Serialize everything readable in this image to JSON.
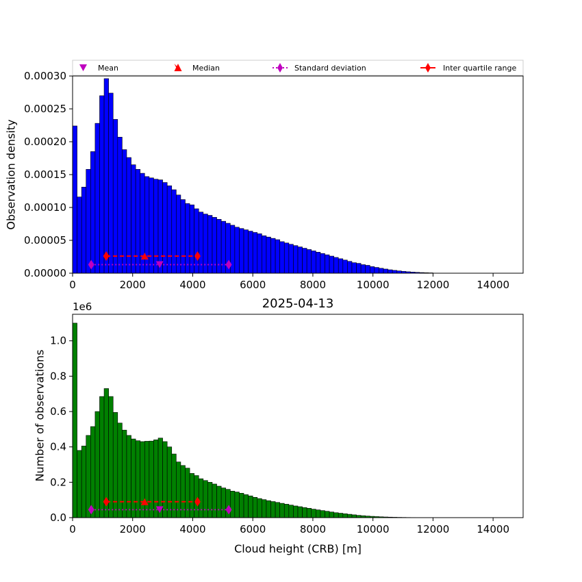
{
  "chart_data": [
    {
      "type": "bar",
      "title": "",
      "xlabel": "",
      "ylabel": "Observation density",
      "xlim": [
        0,
        15000
      ],
      "ylim": [
        0,
        0.0003
      ],
      "bin_width": 150,
      "bar_color": "#0000ff",
      "edge_color": "#000000",
      "xticks": [
        0,
        2000,
        4000,
        6000,
        8000,
        10000,
        12000,
        14000
      ],
      "xtick_labels": [
        "0",
        "2000",
        "4000",
        "6000",
        "8000",
        "10000",
        "12000",
        "14000"
      ],
      "yticks": [
        0,
        5e-05,
        0.0001,
        0.00015,
        0.0002,
        0.00025,
        0.0003
      ],
      "ytick_labels": [
        "0.00000",
        "0.00005",
        "0.00010",
        "0.00015",
        "0.00020",
        "0.00025",
        "0.00030"
      ],
      "bin_edges_start": 0,
      "values": [
        0.000224,
        0.000116,
        0.000131,
        0.000158,
        0.000185,
        0.000228,
        0.00027,
        0.000296,
        0.000274,
        0.000234,
        0.000207,
        0.000188,
        0.000176,
        0.000165,
        0.000158,
        0.000152,
        0.000147,
        0.000145,
        0.000143,
        0.000142,
        0.000138,
        0.000133,
        0.000127,
        0.000119,
        0.000112,
        0.000106,
        0.000104,
        9.8e-05,
        9.3e-05,
        9e-05,
        8.8e-05,
        8.5e-05,
        8.2e-05,
        7.9e-05,
        7.6e-05,
        7.3e-05,
        7e-05,
        6.8e-05,
        6.6e-05,
        6.4e-05,
        6.2e-05,
        6e-05,
        5.7e-05,
        5.5e-05,
        5.3e-05,
        5.1e-05,
        4.8e-05,
        4.6e-05,
        4.4e-05,
        4.2e-05,
        4e-05,
        3.8e-05,
        3.6e-05,
        3.4e-05,
        3.2e-05,
        3e-05,
        2.8e-05,
        2.6e-05,
        2.4e-05,
        2.2e-05,
        2e-05,
        1.8e-05,
        1.6e-05,
        1.5e-05,
        1.3e-05,
        1.2e-05,
        1e-05,
        8.8e-06,
        7.5e-06,
        6.3e-06,
        5.2e-06,
        4.3e-06,
        3.5e-06,
        2.8e-06,
        2.2e-06,
        1.7e-06,
        1.3e-06,
        1e-06,
        7.5e-07,
        5.5e-07
      ],
      "stats": {
        "mean": {
          "x": 2900,
          "y": 1.3e-05
        },
        "median": {
          "x": 2400,
          "y": 2.6e-05
        },
        "std": {
          "x_low": 620,
          "x_high": 5200,
          "y": 1.3e-05
        },
        "iqr": {
          "x_low": 1120,
          "x_high": 4160,
          "y": 2.6e-05
        }
      }
    },
    {
      "type": "bar",
      "title": "2025-04-13",
      "xlabel": "Cloud height (CRB) [m]",
      "ylabel": "Number of observations",
      "offset_label": "1e6",
      "xlim": [
        0,
        15000
      ],
      "ylim": [
        0,
        1150000
      ],
      "bin_width": 150,
      "bar_color": "#008000",
      "edge_color": "#000000",
      "xticks": [
        0,
        2000,
        4000,
        6000,
        8000,
        10000,
        12000,
        14000
      ],
      "xtick_labels": [
        "0",
        "2000",
        "4000",
        "6000",
        "8000",
        "10000",
        "12000",
        "14000"
      ],
      "yticks": [
        0,
        200000,
        400000,
        600000,
        800000,
        1000000
      ],
      "ytick_labels": [
        "0.0",
        "0.2",
        "0.4",
        "0.6",
        "0.8",
        "1.0"
      ],
      "bin_edges_start": 0,
      "values": [
        1100000,
        380000,
        405000,
        465000,
        515000,
        600000,
        685000,
        730000,
        685000,
        595000,
        535000,
        495000,
        465000,
        445000,
        435000,
        430000,
        432000,
        433000,
        440000,
        450000,
        430000,
        400000,
        360000,
        315000,
        295000,
        280000,
        250000,
        238000,
        220000,
        210000,
        200000,
        190000,
        178000,
        168000,
        160000,
        150000,
        145000,
        138000,
        130000,
        123000,
        115000,
        108000,
        102000,
        96000,
        91000,
        86000,
        81000,
        76000,
        71000,
        66000,
        62000,
        57000,
        53000,
        48000,
        44000,
        40000,
        36000,
        32000,
        28000,
        25000,
        22000,
        19000,
        16000,
        13000,
        11000,
        9000,
        7500,
        6000,
        4800,
        3800,
        3000,
        2300,
        1800,
        1400,
        1000,
        800,
        600,
        450,
        300,
        200
      ],
      "stats": {
        "mean": {
          "x": 2900,
          "y": 45000
        },
        "median": {
          "x": 2400,
          "y": 90000
        },
        "std": {
          "x_low": 620,
          "x_high": 5200,
          "y": 45000
        },
        "iqr": {
          "x_low": 1120,
          "x_high": 4160,
          "y": 90000
        }
      }
    }
  ],
  "legend": {
    "placement": "top",
    "items": [
      {
        "label": "Mean",
        "marker": "triangle-down",
        "color": "#bf00bf",
        "line": "none"
      },
      {
        "label": "Median",
        "marker": "triangle-up",
        "color": "#ff0000",
        "line": "none"
      },
      {
        "label": "Standard deviation",
        "marker": "diamond",
        "color": "#bf00bf",
        "line": "dotted"
      },
      {
        "label": "Inter quartile range",
        "marker": "diamond",
        "color": "#ff0000",
        "line": "solid"
      }
    ]
  }
}
